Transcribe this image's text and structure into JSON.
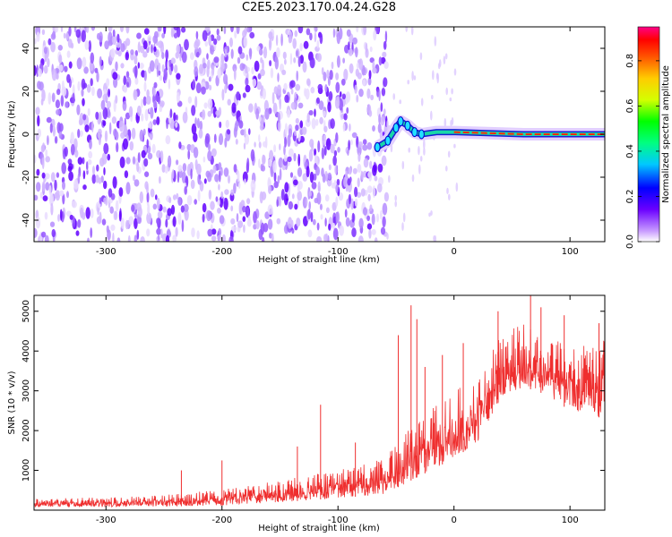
{
  "title": "C2E5.2023.170.04.24.G28",
  "chart_data": [
    {
      "type": "heatmap",
      "xlabel": "Height of straight line (km)",
      "ylabel": "Frequency (Hz)",
      "xlim": [
        -362,
        130
      ],
      "ylim": [
        -50,
        50
      ],
      "xticks": [
        -300,
        -200,
        -100,
        0,
        100
      ],
      "yticks": [
        -40,
        -20,
        0,
        20,
        40
      ],
      "colorbar": {
        "label": "Normalized spectral amplitude",
        "range": [
          0,
          0.95
        ],
        "ticks": [
          0.0,
          0.2,
          0.4,
          0.6,
          0.8
        ]
      },
      "signal_track": [
        {
          "x": -66,
          "y": -6
        },
        {
          "x": -57,
          "y": -3
        },
        {
          "x": -50,
          "y": 3
        },
        {
          "x": -46,
          "y": 6
        },
        {
          "x": -40,
          "y": 4
        },
        {
          "x": -34,
          "y": 1
        },
        {
          "x": -28,
          "y": 0
        },
        {
          "x": -15,
          "y": 1
        },
        {
          "x": 0,
          "y": 1
        },
        {
          "x": 60,
          "y": 0
        },
        {
          "x": 130,
          "y": 0
        }
      ],
      "noise_edge_x": -58
    },
    {
      "type": "line",
      "xlabel": "Height of straight line (km)",
      "ylabel": "SNR (10 * v/v)",
      "xlim": [
        -362,
        130
      ],
      "ylim": [
        0,
        5400
      ],
      "xticks": [
        -300,
        -200,
        -100,
        0,
        100
      ],
      "yticks": [
        1000,
        2000,
        3000,
        4000,
        5000
      ],
      "color": "#ef2f2f",
      "envelope": [
        {
          "x": -362,
          "low": 80,
          "high": 300
        },
        {
          "x": -300,
          "low": 80,
          "high": 320
        },
        {
          "x": -250,
          "low": 90,
          "high": 380
        },
        {
          "x": -200,
          "low": 120,
          "high": 520
        },
        {
          "x": -150,
          "low": 200,
          "high": 750
        },
        {
          "x": -100,
          "low": 300,
          "high": 1000
        },
        {
          "x": -60,
          "low": 400,
          "high": 1300
        },
        {
          "x": -40,
          "low": 700,
          "high": 2000
        },
        {
          "x": -20,
          "low": 1000,
          "high": 2600
        },
        {
          "x": 0,
          "low": 1300,
          "high": 3000
        },
        {
          "x": 20,
          "low": 1700,
          "high": 3400
        },
        {
          "x": 40,
          "low": 2800,
          "high": 4400
        },
        {
          "x": 60,
          "low": 3100,
          "high": 4700
        },
        {
          "x": 80,
          "low": 2900,
          "high": 4300
        },
        {
          "x": 100,
          "low": 2500,
          "high": 4200
        },
        {
          "x": 130,
          "low": 2300,
          "high": 4400
        }
      ],
      "spikes": [
        {
          "x": -235,
          "y": 1000
        },
        {
          "x": -200,
          "y": 1250
        },
        {
          "x": -135,
          "y": 1600
        },
        {
          "x": -115,
          "y": 2650
        },
        {
          "x": -85,
          "y": 1700
        },
        {
          "x": -48,
          "y": 4400
        },
        {
          "x": -37,
          "y": 5150
        },
        {
          "x": -32,
          "y": 4800
        },
        {
          "x": -25,
          "y": 3600
        },
        {
          "x": -10,
          "y": 3900
        },
        {
          "x": 8,
          "y": 4200
        },
        {
          "x": 38,
          "y": 5000
        },
        {
          "x": 66,
          "y": 5400
        },
        {
          "x": 75,
          "y": 5100
        },
        {
          "x": 95,
          "y": 4900
        },
        {
          "x": 125,
          "y": 4700
        }
      ]
    }
  ]
}
